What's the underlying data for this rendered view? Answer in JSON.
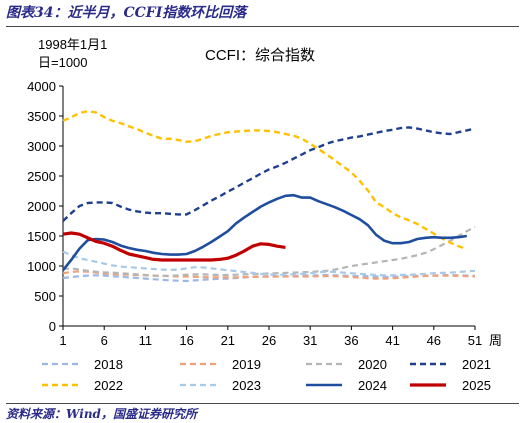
{
  "figure_title": "图表34：近半月，CCFI指数环比回落",
  "source": "资料来源：Wind，国盛证券研究所",
  "chart_data": {
    "type": "line",
    "title": "CCFI：综合指数",
    "ylabel_line1": "1998年1月1",
    "ylabel_line2": "日=1000",
    "xlabel": "周",
    "xlim": [
      1,
      51
    ],
    "ylim": [
      0,
      4000
    ],
    "x_ticks": [
      1,
      6,
      11,
      16,
      21,
      26,
      31,
      36,
      41,
      46,
      51
    ],
    "y_ticks": [
      0,
      500,
      1000,
      1500,
      2000,
      2500,
      3000,
      3500,
      4000
    ],
    "grid": false,
    "legend_position": "bottom",
    "series": [
      {
        "name": "2018",
        "color": "#9db7e6",
        "dash": "dash",
        "width": 2.2,
        "x": [
          1,
          2,
          3,
          4,
          5,
          6,
          7,
          8,
          9,
          10,
          11,
          12,
          13,
          14,
          15,
          16,
          17,
          18,
          19,
          20,
          21,
          22,
          23,
          24,
          25,
          26,
          27,
          28,
          29,
          30,
          31,
          32,
          33,
          34,
          35,
          36,
          37,
          38,
          39,
          40,
          41,
          42,
          43,
          44,
          45,
          46,
          47,
          48,
          49,
          50,
          51
        ],
        "y": [
          800,
          815,
          830,
          840,
          845,
          840,
          830,
          820,
          810,
          800,
          790,
          780,
          770,
          760,
          755,
          750,
          760,
          770,
          780,
          785,
          790,
          800,
          810,
          820,
          825,
          830,
          830,
          830,
          835,
          840,
          840,
          845,
          850,
          845,
          840,
          835,
          830,
          830,
          825,
          820,
          820,
          825,
          830,
          835,
          840,
          840,
          845,
          850,
          845,
          840,
          835
        ]
      },
      {
        "name": "2019",
        "color": "#f0a07a",
        "dash": "dash",
        "width": 2.2,
        "x": [
          1,
          2,
          3,
          4,
          5,
          6,
          7,
          8,
          9,
          10,
          11,
          12,
          13,
          14,
          15,
          16,
          17,
          18,
          19,
          20,
          21,
          22,
          23,
          24,
          25,
          26,
          27,
          28,
          29,
          30,
          31,
          32,
          33,
          34,
          35,
          36,
          37,
          38,
          39,
          40,
          41,
          42,
          43,
          44,
          45,
          46,
          47,
          48,
          49,
          50,
          51
        ],
        "y": [
          880,
          900,
          910,
          905,
          890,
          875,
          865,
          860,
          855,
          850,
          845,
          840,
          835,
          830,
          825,
          825,
          820,
          815,
          810,
          810,
          810,
          812,
          815,
          818,
          820,
          822,
          825,
          825,
          825,
          825,
          825,
          828,
          830,
          830,
          825,
          815,
          805,
          795,
          790,
          790,
          795,
          805,
          815,
          825,
          835,
          840,
          840,
          840,
          835,
          830,
          825
        ]
      },
      {
        "name": "2020",
        "color": "#b5b5b5",
        "dash": "dash",
        "width": 2.2,
        "x": [
          1,
          2,
          3,
          4,
          5,
          6,
          7,
          8,
          9,
          10,
          11,
          12,
          13,
          14,
          15,
          16,
          17,
          18,
          19,
          20,
          21,
          22,
          23,
          24,
          25,
          26,
          27,
          28,
          29,
          30,
          31,
          32,
          33,
          34,
          35,
          36,
          37,
          38,
          39,
          40,
          41,
          42,
          43,
          44,
          45,
          46,
          47,
          48,
          49,
          50,
          51
        ],
        "y": [
          950,
          960,
          940,
          920,
          905,
          895,
          890,
          880,
          870,
          860,
          850,
          840,
          835,
          835,
          845,
          855,
          860,
          860,
          855,
          850,
          850,
          855,
          860,
          865,
          870,
          875,
          880,
          885,
          890,
          895,
          900,
          910,
          920,
          940,
          970,
          1000,
          1020,
          1040,
          1060,
          1080,
          1100,
          1120,
          1150,
          1180,
          1220,
          1280,
          1350,
          1420,
          1500,
          1580,
          1650
        ]
      },
      {
        "name": "2021",
        "color": "#1f3f8f",
        "dash": "dash",
        "width": 2.4,
        "x": [
          1,
          2,
          3,
          4,
          5,
          6,
          7,
          8,
          9,
          10,
          11,
          12,
          13,
          14,
          15,
          16,
          17,
          18,
          19,
          20,
          21,
          22,
          23,
          24,
          25,
          26,
          27,
          28,
          29,
          30,
          31,
          32,
          33,
          34,
          35,
          36,
          37,
          38,
          39,
          40,
          41,
          42,
          43,
          44,
          45,
          46,
          47,
          48,
          49,
          50,
          51
        ],
        "y": [
          1750,
          1880,
          2000,
          2050,
          2060,
          2060,
          2050,
          1990,
          1940,
          1910,
          1890,
          1880,
          1880,
          1870,
          1860,
          1860,
          1930,
          2010,
          2090,
          2160,
          2240,
          2310,
          2390,
          2460,
          2540,
          2610,
          2660,
          2720,
          2790,
          2860,
          2930,
          2980,
          3040,
          3080,
          3110,
          3140,
          3160,
          3190,
          3220,
          3250,
          3270,
          3300,
          3310,
          3290,
          3260,
          3230,
          3210,
          3200,
          3230,
          3260,
          3290
        ]
      },
      {
        "name": "2022",
        "color": "#ffc000",
        "dash": "dash",
        "width": 2.4,
        "x": [
          1,
          2,
          3,
          4,
          5,
          6,
          7,
          8,
          9,
          10,
          11,
          12,
          13,
          14,
          15,
          16,
          17,
          18,
          19,
          20,
          21,
          22,
          23,
          24,
          25,
          26,
          27,
          28,
          29,
          30,
          31,
          32,
          33,
          34,
          35,
          36,
          37,
          38,
          39,
          40,
          41,
          42,
          43,
          44,
          45,
          46,
          47,
          48,
          49,
          50
        ],
        "y": [
          3420,
          3480,
          3550,
          3580,
          3560,
          3480,
          3420,
          3380,
          3330,
          3280,
          3220,
          3170,
          3120,
          3120,
          3100,
          3070,
          3080,
          3120,
          3170,
          3200,
          3230,
          3240,
          3250,
          3260,
          3260,
          3250,
          3230,
          3200,
          3170,
          3120,
          3040,
          2950,
          2860,
          2760,
          2660,
          2560,
          2420,
          2260,
          2060,
          1980,
          1880,
          1810,
          1760,
          1700,
          1620,
          1540,
          1460,
          1390,
          1330,
          1280
        ]
      },
      {
        "name": "2023",
        "color": "#a9c9ea",
        "dash": "dash",
        "width": 2.2,
        "x": [
          1,
          2,
          3,
          4,
          5,
          6,
          7,
          8,
          9,
          10,
          11,
          12,
          13,
          14,
          15,
          16,
          17,
          18,
          19,
          20,
          21,
          22,
          23,
          24,
          25,
          26,
          27,
          28,
          29,
          30,
          31,
          32,
          33,
          34,
          35,
          36,
          37,
          38,
          39,
          40,
          41,
          42,
          43,
          44,
          45,
          46,
          47,
          48,
          49,
          50,
          51
        ],
        "y": [
          1240,
          1180,
          1130,
          1100,
          1070,
          1040,
          1010,
          990,
          980,
          970,
          960,
          950,
          940,
          935,
          940,
          960,
          980,
          975,
          960,
          945,
          930,
          915,
          900,
          885,
          870,
          860,
          855,
          855,
          860,
          870,
          880,
          895,
          905,
          900,
          890,
          880,
          870,
          860,
          850,
          845,
          845,
          850,
          855,
          860,
          870,
          880,
          885,
          890,
          900,
          910,
          920
        ]
      },
      {
        "name": "2024",
        "color": "#1f4e9e",
        "dash": "solid",
        "width": 2.6,
        "x": [
          1,
          2,
          3,
          4,
          5,
          6,
          7,
          8,
          9,
          10,
          11,
          12,
          13,
          14,
          15,
          16,
          17,
          18,
          19,
          20,
          21,
          22,
          23,
          24,
          25,
          26,
          27,
          28,
          29,
          30,
          31,
          32,
          33,
          34,
          35,
          36,
          37,
          38,
          39,
          40,
          41,
          42,
          43,
          44,
          45,
          46,
          47,
          48,
          49,
          50
        ],
        "y": [
          930,
          1100,
          1290,
          1430,
          1450,
          1440,
          1400,
          1340,
          1300,
          1270,
          1250,
          1220,
          1200,
          1190,
          1190,
          1200,
          1250,
          1320,
          1400,
          1490,
          1580,
          1710,
          1810,
          1900,
          1990,
          2060,
          2120,
          2170,
          2180,
          2140,
          2140,
          2080,
          2030,
          1980,
          1920,
          1850,
          1780,
          1680,
          1520,
          1420,
          1380,
          1380,
          1400,
          1450,
          1470,
          1480,
          1470,
          1470,
          1480,
          1500
        ]
      },
      {
        "name": "2025",
        "color": "#c00000",
        "dash": "solid",
        "width": 3.2,
        "x": [
          1,
          2,
          3,
          4,
          5,
          6,
          7,
          8,
          9,
          10,
          11,
          12,
          13,
          14,
          15,
          16,
          17,
          18,
          19,
          20,
          21,
          22,
          23,
          24,
          25,
          26,
          27,
          28
        ],
        "y": [
          1530,
          1550,
          1530,
          1470,
          1410,
          1380,
          1330,
          1260,
          1200,
          1170,
          1140,
          1110,
          1100,
          1100,
          1100,
          1100,
          1100,
          1100,
          1100,
          1110,
          1130,
          1180,
          1250,
          1330,
          1370,
          1360,
          1330,
          1310
        ]
      }
    ]
  }
}
